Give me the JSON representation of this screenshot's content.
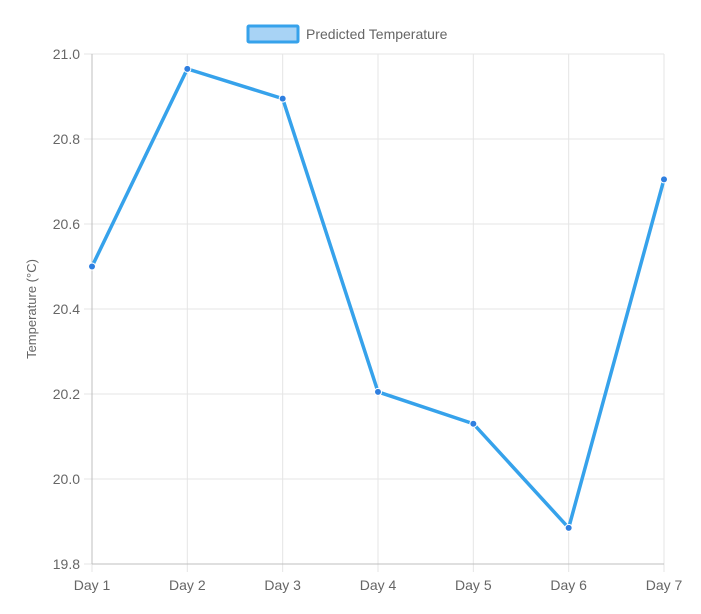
{
  "chart_data": {
    "type": "line",
    "categories": [
      "Day 1",
      "Day 2",
      "Day 3",
      "Day 4",
      "Day 5",
      "Day 6",
      "Day 7"
    ],
    "series": [
      {
        "name": "Predicted Temperature",
        "values": [
          20.5,
          20.965,
          20.895,
          20.205,
          20.13,
          19.885,
          20.705
        ],
        "color": "#36A2EB",
        "fill_color": "#A8D3F5"
      }
    ],
    "ylabel": "Temperature (°C)",
    "xlabel": "",
    "ylim": [
      19.8,
      21.0
    ],
    "yticks": [
      "19.8",
      "20.0",
      "20.2",
      "20.4",
      "20.6",
      "20.8",
      "21.0"
    ],
    "grid": true,
    "legend_position": "top-center",
    "grid_color": "#E5E5E5",
    "axis_color": "#BFBFBF",
    "point_color": "#2F7FE0"
  }
}
